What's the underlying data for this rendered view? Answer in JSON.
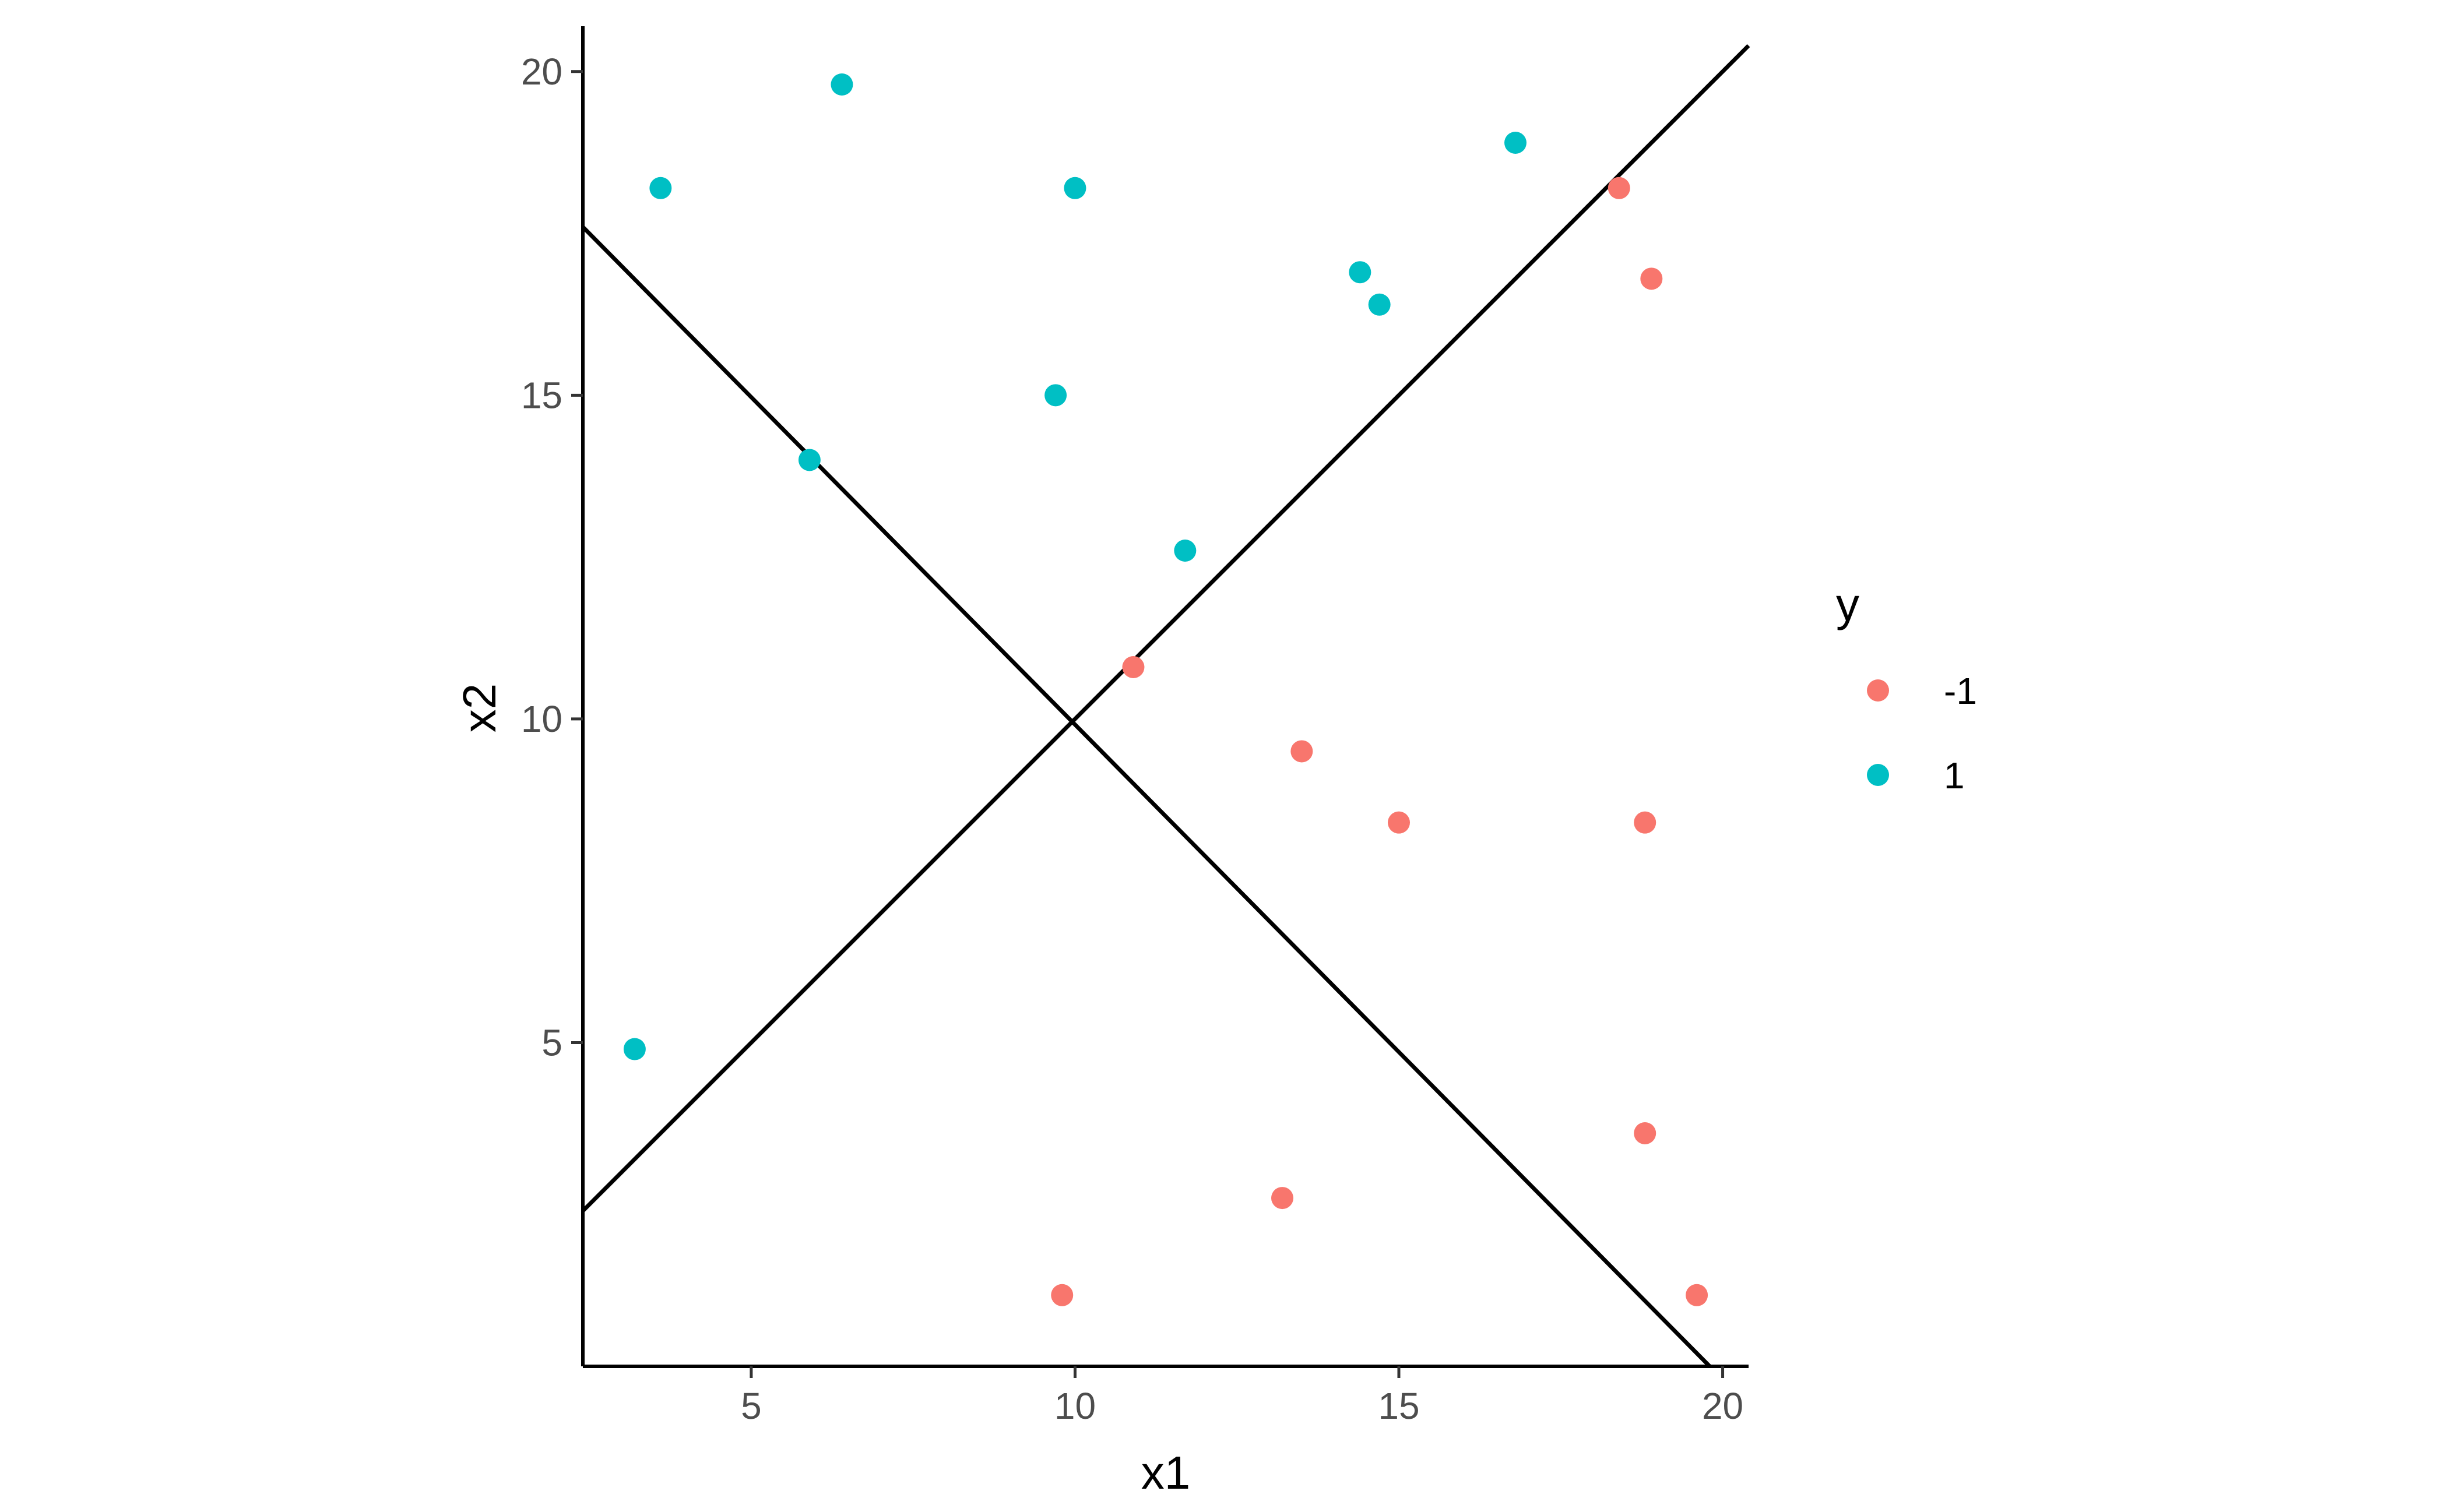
{
  "chart_data": {
    "type": "scatter",
    "title": "",
    "xlabel": "x1",
    "ylabel": "x2",
    "xlim": [
      2.4,
      20.4
    ],
    "ylim": [
      0.0,
      20.7
    ],
    "xticks": [
      5,
      10,
      15,
      20
    ],
    "yticks": [
      5,
      10,
      15,
      20
    ],
    "grid": false,
    "legend": {
      "title": "y",
      "placement": "right",
      "entries": [
        {
          "label": "-1",
          "color": "#F8766D"
        },
        {
          "label": "1",
          "color": "#00BFC4"
        }
      ]
    },
    "series": [
      {
        "name": "-1",
        "color": "#F8766D",
        "points": [
          {
            "x": 18.4,
            "y": 18.2
          },
          {
            "x": 18.9,
            "y": 16.8
          },
          {
            "x": 10.9,
            "y": 10.8
          },
          {
            "x": 13.5,
            "y": 9.5
          },
          {
            "x": 15.0,
            "y": 8.4
          },
          {
            "x": 18.8,
            "y": 8.4
          },
          {
            "x": 18.8,
            "y": 3.6
          },
          {
            "x": 13.2,
            "y": 2.6
          },
          {
            "x": 9.8,
            "y": 1.1
          },
          {
            "x": 19.6,
            "y": 1.1
          }
        ]
      },
      {
        "name": "1",
        "color": "#00BFC4",
        "points": [
          {
            "x": 3.6,
            "y": 18.2
          },
          {
            "x": 6.4,
            "y": 19.8
          },
          {
            "x": 10.0,
            "y": 18.2
          },
          {
            "x": 16.8,
            "y": 18.9
          },
          {
            "x": 14.4,
            "y": 16.9
          },
          {
            "x": 14.7,
            "y": 16.4
          },
          {
            "x": 9.7,
            "y": 15.0
          },
          {
            "x": 5.9,
            "y": 14.0
          },
          {
            "x": 11.7,
            "y": 12.6
          },
          {
            "x": 3.2,
            "y": 4.9
          }
        ]
      }
    ],
    "lines": [
      {
        "x": [
          2.4,
          20.4
        ],
        "y": [
          2.4,
          20.4
        ],
        "color": "#000000"
      },
      {
        "x": [
          2.4,
          19.8
        ],
        "y": [
          17.6,
          0.0
        ],
        "color": "#000000"
      }
    ]
  }
}
